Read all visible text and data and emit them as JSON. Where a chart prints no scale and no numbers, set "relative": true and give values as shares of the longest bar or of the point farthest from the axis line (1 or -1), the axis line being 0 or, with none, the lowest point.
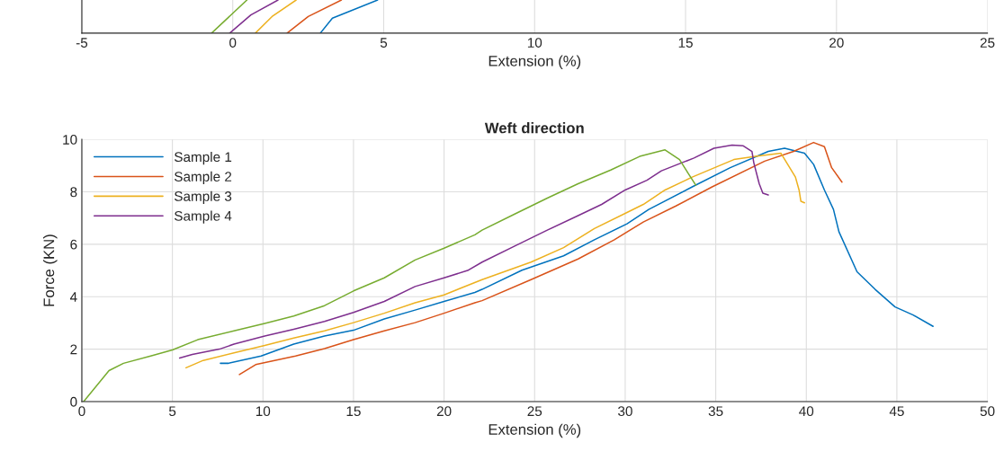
{
  "chart_data": [
    {
      "type": "line",
      "relative": true,
      "xlabel": "Extension (%)",
      "xlim": [
        -5,
        25
      ],
      "xticks": [
        -5,
        0,
        5,
        10,
        15,
        20,
        25
      ],
      "grid": "x",
      "series": [
        {
          "color": "#77ac30",
          "x": [
            -0.7,
            0.47
          ],
          "values": [
            0,
            1
          ]
        },
        {
          "color": "#7e2f8e",
          "x": [
            -0.1,
            0.6,
            1.5
          ],
          "values": [
            0,
            0.55,
            1
          ]
        },
        {
          "color": "#edb120",
          "x": [
            0.75,
            1.3,
            2.1
          ],
          "values": [
            0,
            0.5,
            1
          ]
        },
        {
          "color": "#d95319",
          "x": [
            1.8,
            2.5,
            3.6
          ],
          "values": [
            0,
            0.5,
            1
          ]
        },
        {
          "color": "#0072bd",
          "x": [
            2.9,
            3.3,
            4.8
          ],
          "values": [
            0,
            0.45,
            1
          ]
        }
      ]
    },
    {
      "type": "line",
      "title": "Weft direction",
      "xlabel": "Extension (%)",
      "ylabel": "Force (KN)",
      "xlim": [
        0,
        50
      ],
      "xticks": [
        0,
        5,
        10,
        15,
        20,
        25,
        30,
        35,
        40,
        45,
        50
      ],
      "ylim": [
        0,
        10
      ],
      "yticks": [
        0,
        2,
        4,
        6,
        8,
        10
      ],
      "grid": true,
      "legend": "top left",
      "series": [
        {
          "name": "Sample 1",
          "color": "#0072bd",
          "x": [
            7.65,
            8.1,
            9.9,
            11.7,
            13.4,
            15,
            16.7,
            18.4,
            20,
            21.7,
            22.1,
            24.3,
            26.6,
            28.3,
            30.1,
            31.3,
            33.7,
            35.8,
            37.9,
            38.8,
            39.9,
            40.4,
            41.0,
            41.5,
            41.8,
            42.8,
            43.8,
            44.9,
            45.9,
            47.0
          ],
          "values": [
            1.46,
            1.46,
            1.74,
            2.19,
            2.5,
            2.72,
            3.15,
            3.49,
            3.82,
            4.16,
            4.28,
            5.01,
            5.56,
            6.17,
            6.78,
            7.33,
            8.19,
            8.92,
            9.54,
            9.66,
            9.47,
            9.05,
            8.07,
            7.33,
            6.48,
            4.95,
            4.28,
            3.61,
            3.3,
            2.87
          ]
        },
        {
          "name": "Sample 2",
          "color": "#d95319",
          "x": [
            8.7,
            9.6,
            11.8,
            13.4,
            15.0,
            16.7,
            18.4,
            20,
            21.7,
            22.1,
            24.8,
            27.4,
            29.4,
            31.0,
            32.8,
            34.8,
            37.7,
            39.3,
            40.4,
            41.0,
            41.4,
            41.97
          ],
          "values": [
            1.03,
            1.41,
            1.74,
            2.02,
            2.36,
            2.7,
            3.01,
            3.37,
            3.77,
            3.85,
            4.65,
            5.44,
            6.17,
            6.85,
            7.46,
            8.19,
            9.17,
            9.54,
            9.88,
            9.72,
            8.92,
            8.37
          ]
        },
        {
          "name": "Sample 3",
          "color": "#edb120",
          "x": [
            5.75,
            6.7,
            8.4,
            10.1,
            11.7,
            13.4,
            15,
            16.7,
            18.4,
            20,
            22.1,
            24.8,
            26.6,
            28.3,
            30.1,
            31.0,
            32.2,
            33.7,
            36.0,
            37.2,
            38.6,
            38.97,
            39.4,
            39.6,
            39.7,
            39.9
          ],
          "values": [
            1.29,
            1.57,
            1.86,
            2.14,
            2.42,
            2.7,
            3.01,
            3.37,
            3.77,
            4.07,
            4.65,
            5.32,
            5.87,
            6.6,
            7.21,
            7.52,
            8.07,
            8.56,
            9.23,
            9.35,
            9.47,
            9.05,
            8.56,
            8.07,
            7.64,
            7.58
          ]
        },
        {
          "name": "Sample 4",
          "color": "#7e2f8e",
          "x": [
            5.4,
            6.1,
            7.6,
            8.4,
            10.1,
            11.7,
            13.4,
            15,
            16.7,
            18.4,
            20,
            21.3,
            22.1,
            23.9,
            25.7,
            27.4,
            28.7,
            30.0,
            31.2,
            32.0,
            33.8,
            34.9,
            35.9,
            36.5,
            37.0,
            37.1,
            37.4,
            37.6,
            37.9
          ],
          "values": [
            1.66,
            1.8,
            2.0,
            2.19,
            2.5,
            2.76,
            3.06,
            3.4,
            3.82,
            4.39,
            4.72,
            5.0,
            5.32,
            5.93,
            6.54,
            7.09,
            7.52,
            8.07,
            8.44,
            8.8,
            9.29,
            9.66,
            9.78,
            9.76,
            9.54,
            9.11,
            8.31,
            7.95,
            7.88
          ]
        },
        {
          "color": "#77ac30",
          "x": [
            0.1,
            1.5,
            2.3,
            3.8,
            5,
            6.4,
            8.4,
            10.1,
            11.7,
            13.4,
            15.0,
            16.7,
            18.4,
            20,
            21.7,
            22.1,
            23.9,
            25.7,
            27.4,
            29.2,
            30.8,
            32.2,
            33.0,
            33.5,
            33.9
          ],
          "values": [
            0,
            1.18,
            1.46,
            1.74,
            1.97,
            2.36,
            2.7,
            2.98,
            3.26,
            3.66,
            4.22,
            4.72,
            5.4,
            5.85,
            6.36,
            6.54,
            7.15,
            7.76,
            8.31,
            8.83,
            9.35,
            9.6,
            9.23,
            8.68,
            8.25
          ]
        }
      ]
    }
  ]
}
